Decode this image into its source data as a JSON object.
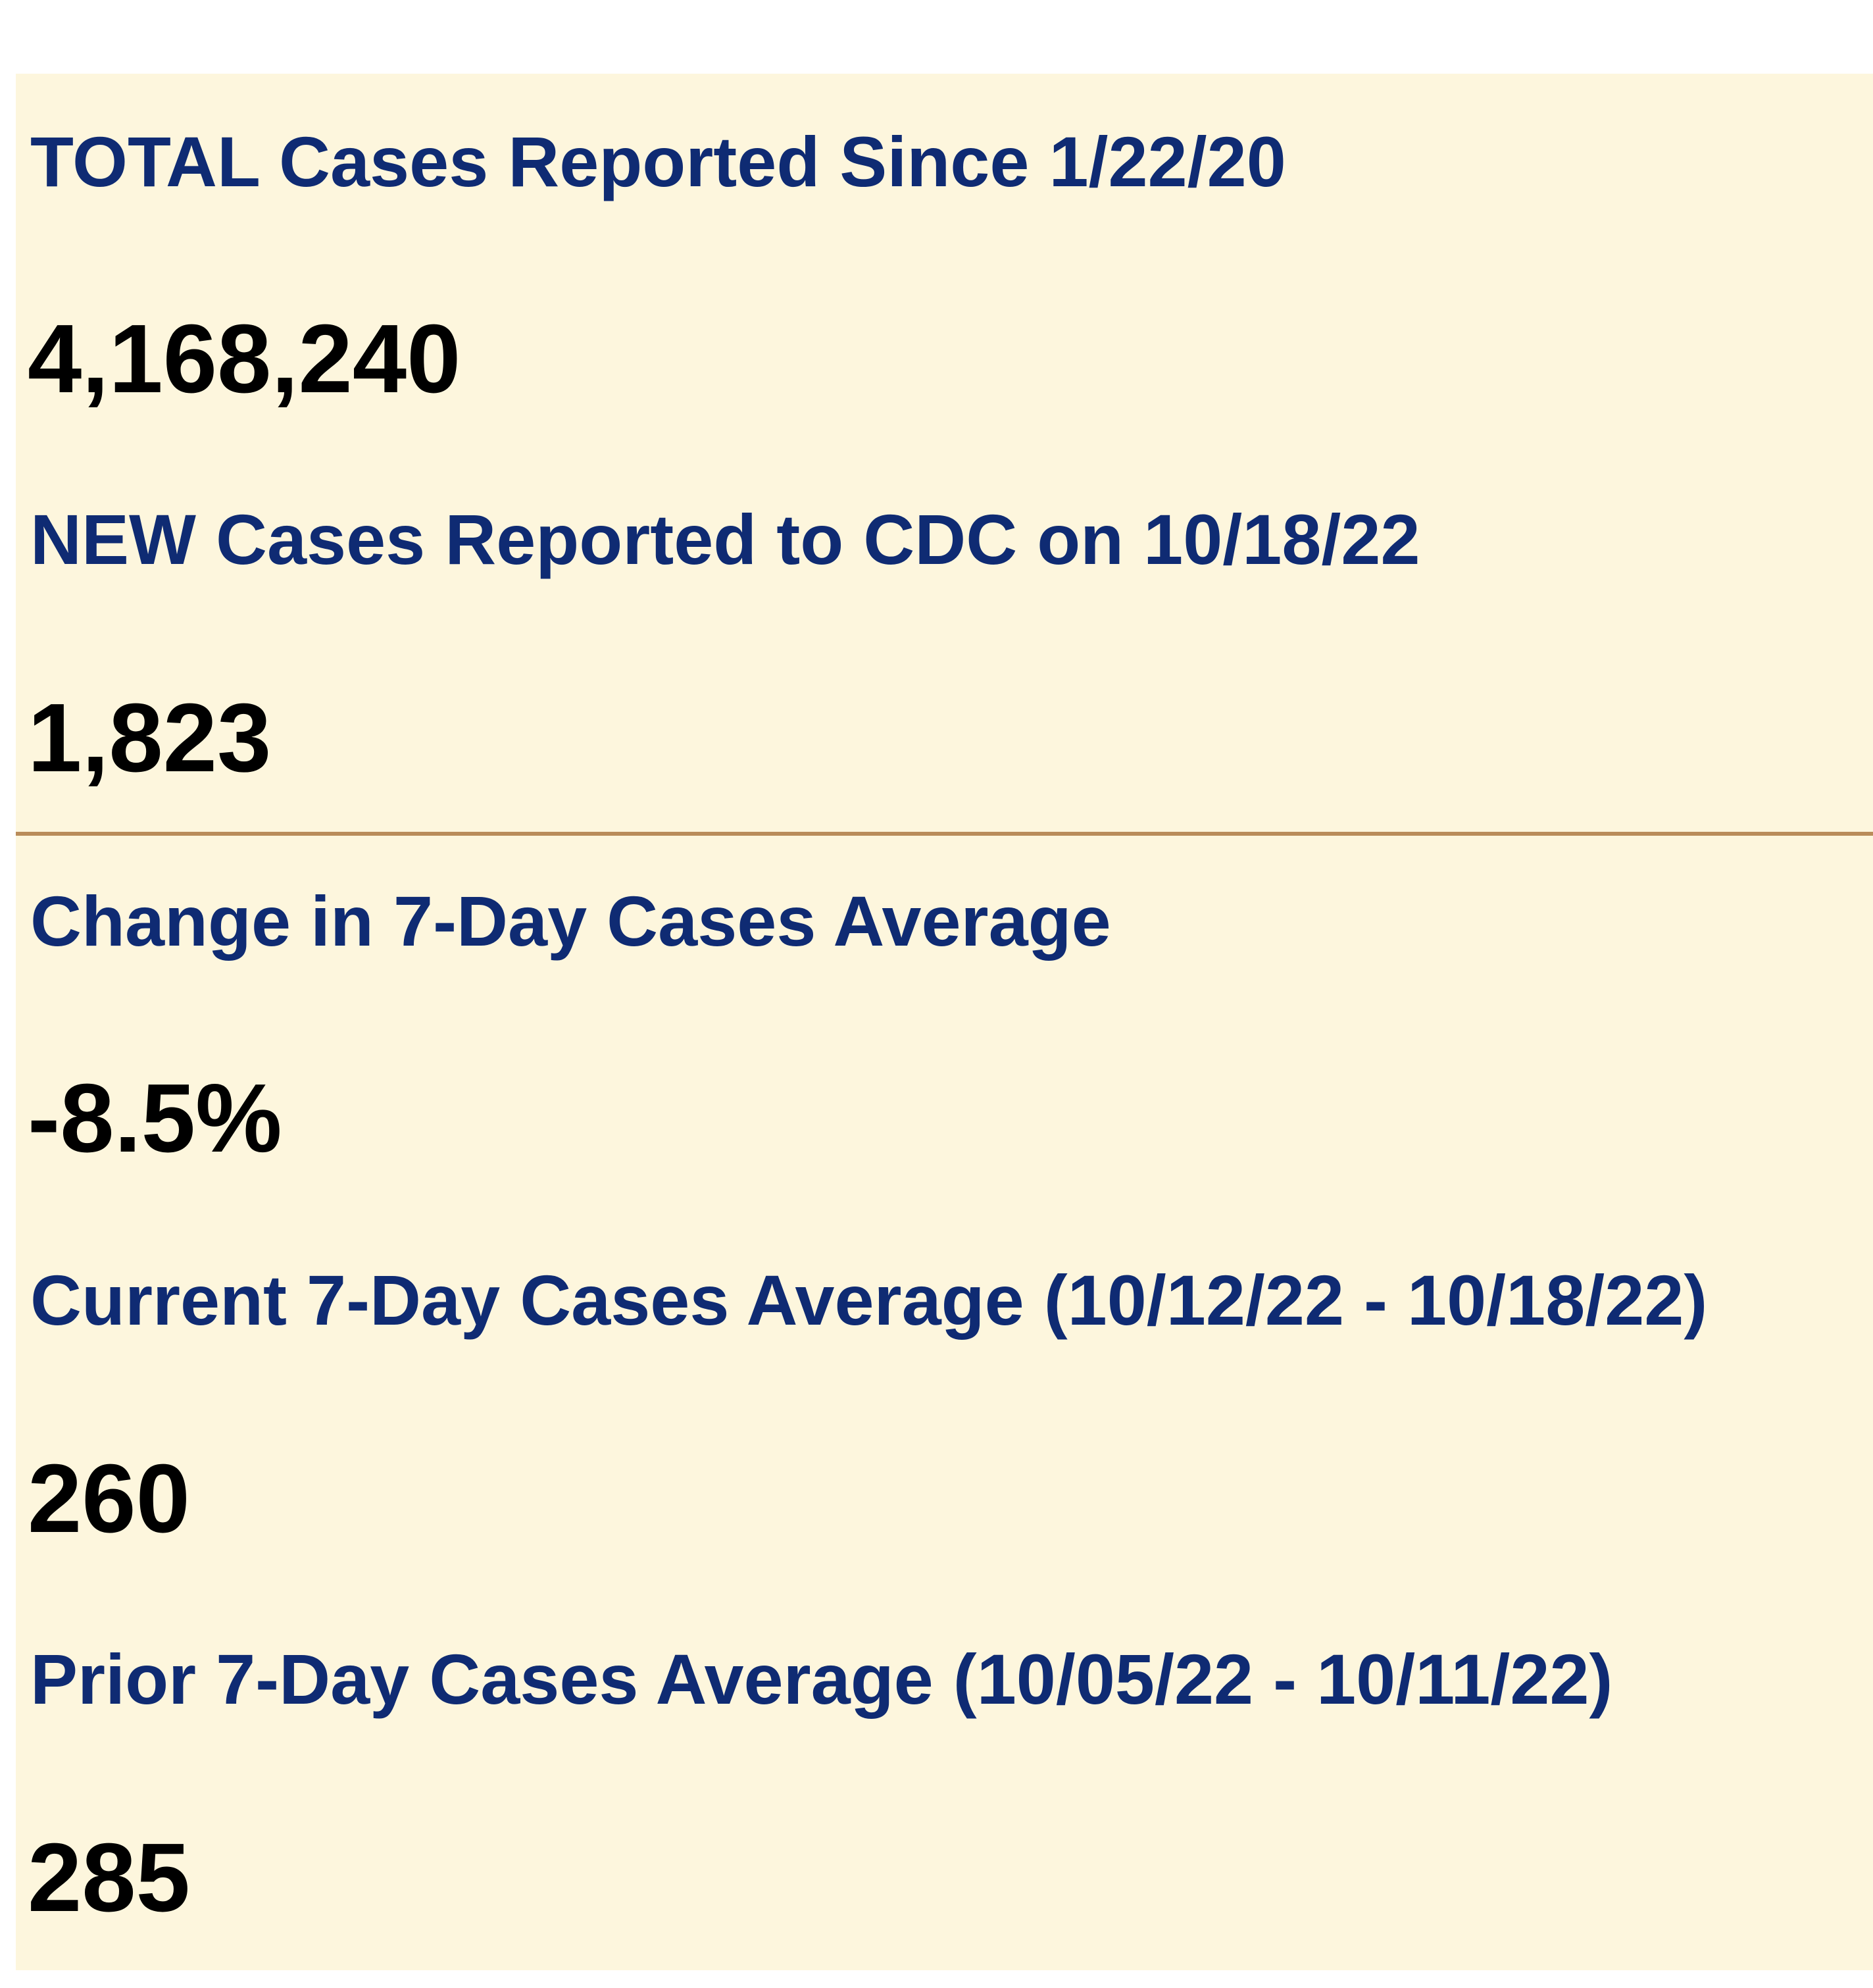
{
  "colors": {
    "panel_background": "#fdf6dd",
    "label_text": "#0f2b73",
    "value_text": "#000000",
    "divider": "#b98c5a"
  },
  "stats": [
    {
      "label": "TOTAL Cases Reported Since 1/22/20",
      "value": "4,168,240"
    },
    {
      "label": "NEW Cases Reported to CDC on 10/18/22",
      "value": "1,823"
    },
    {
      "label": "Change in 7-Day Cases Average",
      "value": "-8.5%"
    },
    {
      "label": "Current 7-Day Cases Average (10/12/22 - 10/18/22)",
      "value": "260"
    },
    {
      "label": "Prior 7-Day Cases Average (10/05/22 - 10/11/22)",
      "value": "285"
    }
  ]
}
